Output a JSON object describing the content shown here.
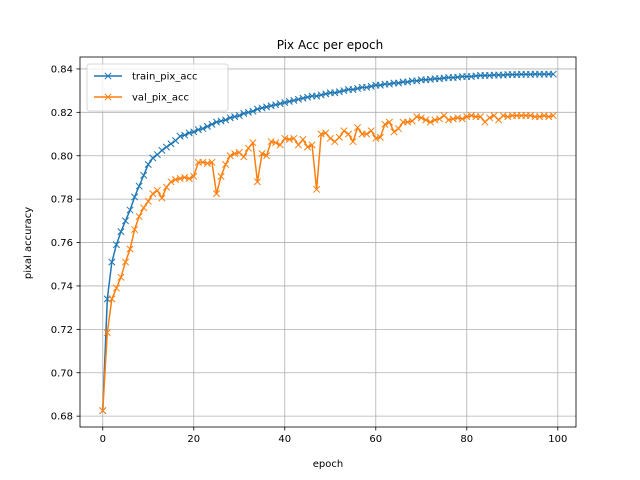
{
  "chart_data": {
    "type": "line",
    "title": "Pix Acc per epoch",
    "xlabel": "epoch",
    "ylabel": "pixal accuracy",
    "xlim": [
      -5,
      104
    ],
    "ylim": [
      0.675,
      0.8455
    ],
    "xticks": [
      0,
      20,
      40,
      60,
      80,
      100
    ],
    "yticks": [
      0.68,
      0.7,
      0.72,
      0.74,
      0.76,
      0.78,
      0.8,
      0.82,
      0.84
    ],
    "grid": true,
    "legend_position": "upper-left",
    "marker": "x",
    "series": [
      {
        "name": "train_pix_acc",
        "color": "#1f77b4",
        "values": [
          0.6825,
          0.734,
          0.751,
          0.759,
          0.765,
          0.77,
          0.775,
          0.781,
          0.786,
          0.791,
          0.796,
          0.799,
          0.8005,
          0.8025,
          0.804,
          0.8055,
          0.807,
          0.809,
          0.8095,
          0.8105,
          0.811,
          0.812,
          0.8125,
          0.8135,
          0.8145,
          0.8155,
          0.816,
          0.8165,
          0.8175,
          0.818,
          0.8185,
          0.8195,
          0.82,
          0.8205,
          0.8215,
          0.822,
          0.8225,
          0.823,
          0.8235,
          0.824,
          0.8245,
          0.825,
          0.8255,
          0.826,
          0.8265,
          0.827,
          0.8275,
          0.8275,
          0.828,
          0.8285,
          0.829,
          0.829,
          0.8295,
          0.83,
          0.8305,
          0.8305,
          0.831,
          0.8315,
          0.8315,
          0.832,
          0.8325,
          0.8325,
          0.833,
          0.833,
          0.8335,
          0.8335,
          0.834,
          0.834,
          0.8345,
          0.8345,
          0.835,
          0.835,
          0.8352,
          0.8355,
          0.8355,
          0.8358,
          0.836,
          0.836,
          0.8362,
          0.8365,
          0.8365,
          0.8365,
          0.8368,
          0.837,
          0.837,
          0.837,
          0.8372,
          0.8372,
          0.8372,
          0.8374,
          0.8374,
          0.8374,
          0.8375,
          0.8375,
          0.8375,
          0.8376,
          0.8376,
          0.8376,
          0.8376,
          0.8376
        ]
      },
      {
        "name": "val_pix_acc",
        "color": "#ff7f0e",
        "values": [
          0.6825,
          0.7185,
          0.734,
          0.739,
          0.744,
          0.751,
          0.757,
          0.766,
          0.772,
          0.776,
          0.779,
          0.7825,
          0.784,
          0.7805,
          0.7855,
          0.788,
          0.789,
          0.7895,
          0.79,
          0.7895,
          0.7905,
          0.797,
          0.797,
          0.7965,
          0.797,
          0.7825,
          0.7905,
          0.796,
          0.8,
          0.801,
          0.8015,
          0.7995,
          0.8035,
          0.806,
          0.788,
          0.801,
          0.8,
          0.8065,
          0.806,
          0.805,
          0.808,
          0.8075,
          0.808,
          0.805,
          0.8075,
          0.804,
          0.805,
          0.7845,
          0.81,
          0.8105,
          0.808,
          0.8065,
          0.8085,
          0.8115,
          0.81,
          0.8065,
          0.813,
          0.81,
          0.81,
          0.8115,
          0.808,
          0.8085,
          0.8145,
          0.8155,
          0.811,
          0.8125,
          0.8155,
          0.8155,
          0.816,
          0.818,
          0.8175,
          0.8165,
          0.8155,
          0.8165,
          0.817,
          0.8185,
          0.8165,
          0.817,
          0.8175,
          0.817,
          0.818,
          0.8185,
          0.818,
          0.818,
          0.8155,
          0.8175,
          0.8185,
          0.8165,
          0.8185,
          0.818,
          0.8185,
          0.8185,
          0.8185,
          0.8185,
          0.8185,
          0.818,
          0.818,
          0.8185,
          0.818,
          0.8185
        ]
      }
    ]
  }
}
